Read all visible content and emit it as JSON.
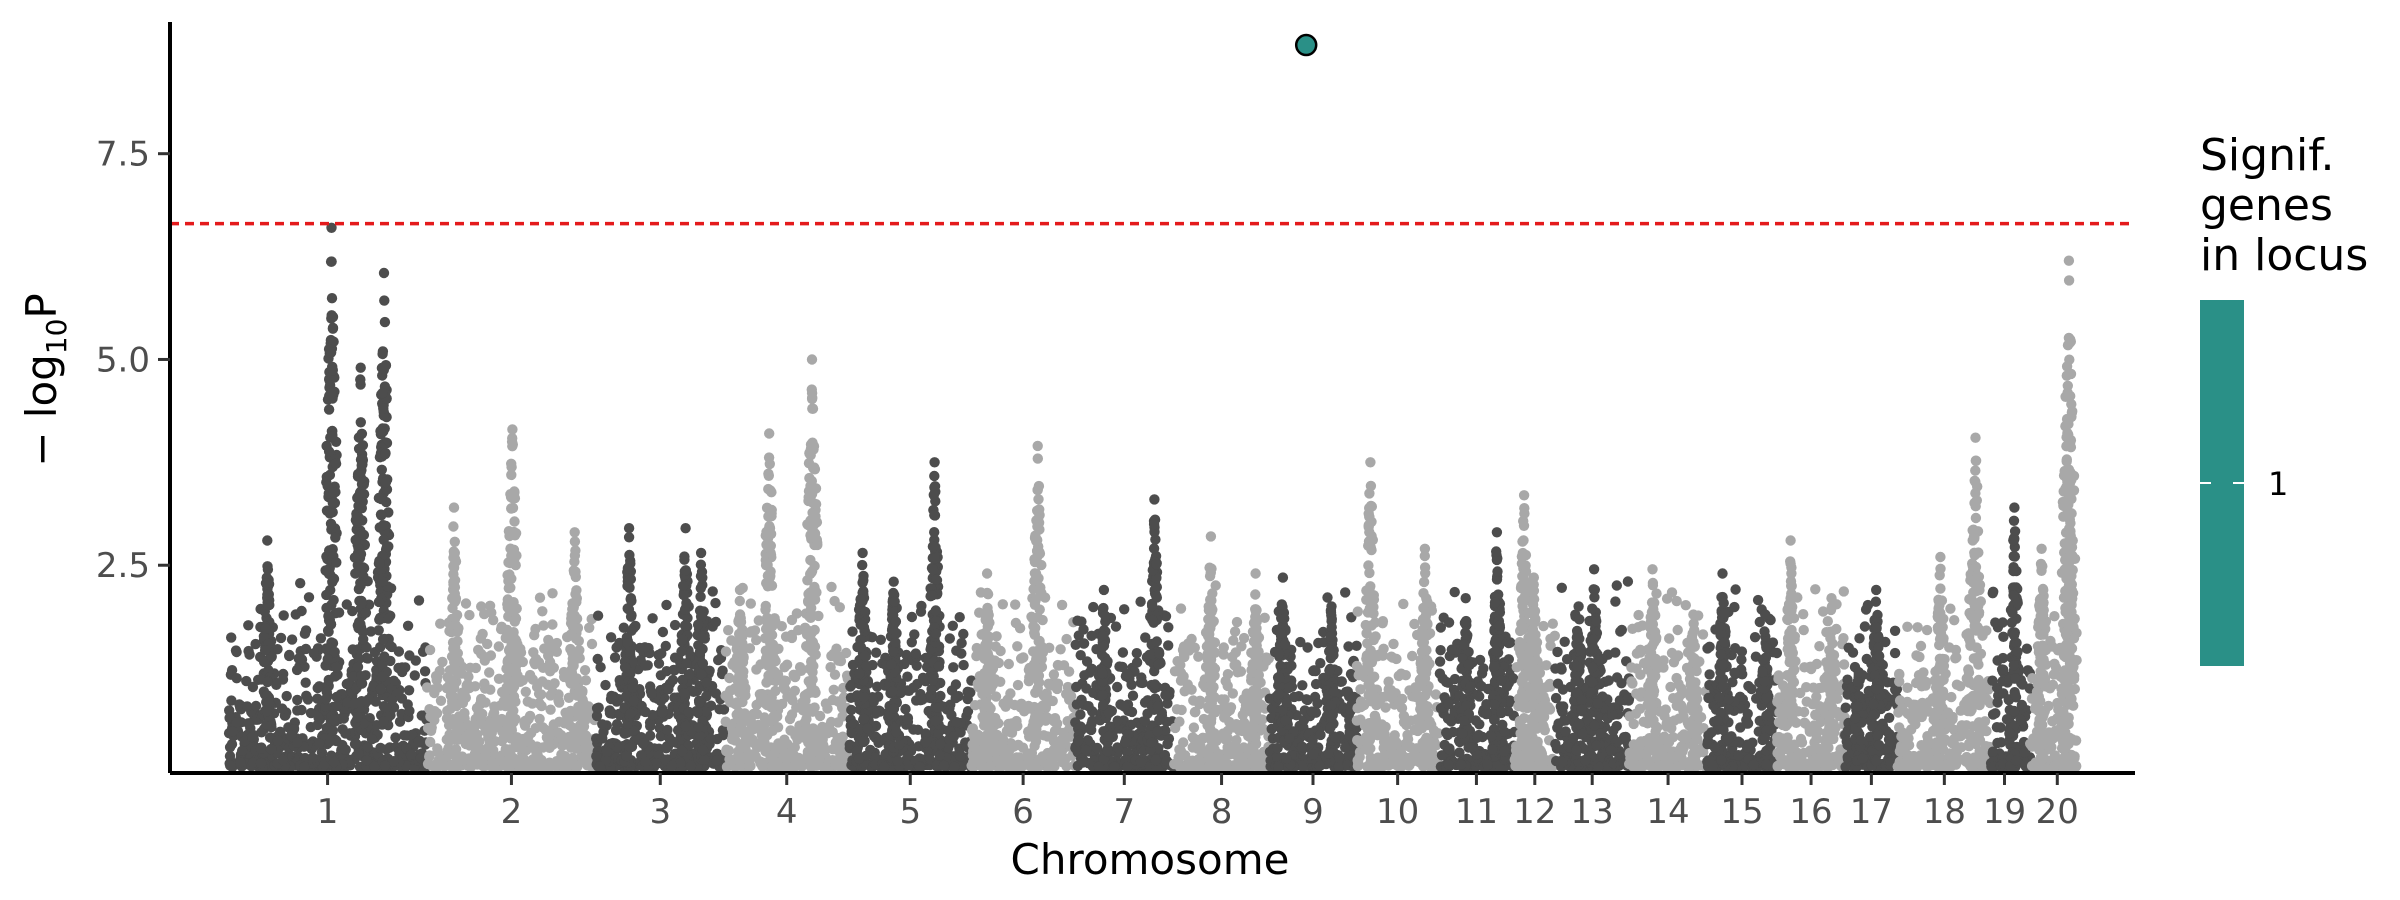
{
  "chart_data": {
    "type": "scatter",
    "title": "",
    "xlabel": "Chromosome",
    "ylabel_main": "− log",
    "ylabel_sub": "10",
    "ylabel_tail": "P",
    "ylim": [
      0,
      9.1
    ],
    "yticks": [
      {
        "value": 2.5,
        "label": "2.5"
      },
      {
        "value": 5.0,
        "label": "5.0"
      },
      {
        "value": 7.5,
        "label": "7.5"
      }
    ],
    "threshold": {
      "value": 6.65,
      "color": "#e41a1c",
      "style": "dashed"
    },
    "colors": {
      "dark": "#4d4d4d",
      "light": "#a8a8a8",
      "highlight": "#2a9087",
      "axis": "#000000"
    },
    "chromosomes": [
      {
        "label": "1",
        "start": 0,
        "end": 10.2,
        "peaks": [
          [
            5.3,
            6.6
          ],
          [
            8.0,
            6.05
          ],
          [
            2.0,
            2.8
          ],
          [
            6.8,
            4.9
          ]
        ]
      },
      {
        "label": "2",
        "start": 10.2,
        "end": 18.9,
        "peaks": [
          [
            14.6,
            4.15
          ],
          [
            11.6,
            3.2
          ],
          [
            17.8,
            2.9
          ]
        ]
      },
      {
        "label": "3",
        "start": 18.9,
        "end": 25.5,
        "peaks": [
          [
            20.6,
            2.95
          ],
          [
            23.5,
            2.95
          ],
          [
            24.3,
            2.65
          ]
        ]
      },
      {
        "label": "4",
        "start": 25.5,
        "end": 31.9,
        "peaks": [
          [
            27.8,
            4.1
          ],
          [
            30.0,
            5.0
          ],
          [
            26.3,
            2.2
          ]
        ]
      },
      {
        "label": "5",
        "start": 31.9,
        "end": 38.2,
        "peaks": [
          [
            36.3,
            3.75
          ],
          [
            32.6,
            2.65
          ],
          [
            34.2,
            2.3
          ]
        ]
      },
      {
        "label": "6",
        "start": 38.2,
        "end": 43.5,
        "peaks": [
          [
            41.6,
            3.95
          ],
          [
            39.0,
            2.4
          ]
        ]
      },
      {
        "label": "7",
        "start": 43.5,
        "end": 48.6,
        "peaks": [
          [
            47.6,
            3.3
          ],
          [
            45.0,
            2.2
          ]
        ]
      },
      {
        "label": "8",
        "start": 48.6,
        "end": 53.5,
        "peaks": [
          [
            50.5,
            2.85
          ],
          [
            52.8,
            2.4
          ]
        ]
      },
      {
        "label": "9",
        "start": 53.5,
        "end": 58.0,
        "peaks": [
          [
            54.2,
            2.35
          ],
          [
            56.7,
            2.0
          ]
        ]
      },
      {
        "label": "10",
        "start": 58.0,
        "end": 62.2,
        "peaks": [
          [
            58.7,
            3.75
          ],
          [
            61.5,
            2.7
          ]
        ]
      },
      {
        "label": "11",
        "start": 62.2,
        "end": 66.1,
        "peaks": [
          [
            65.2,
            2.9
          ],
          [
            63.6,
            2.1
          ]
        ]
      },
      {
        "label": "12",
        "start": 66.1,
        "end": 68.2,
        "peaks": [
          [
            66.6,
            3.35
          ],
          [
            67.1,
            2.35
          ]
        ]
      },
      {
        "label": "13",
        "start": 68.2,
        "end": 72.0,
        "peaks": [
          [
            70.2,
            2.45
          ],
          [
            69.4,
            2.0
          ]
        ]
      },
      {
        "label": "14",
        "start": 72.0,
        "end": 76.0,
        "peaks": [
          [
            73.2,
            2.45
          ],
          [
            75.3,
            1.9
          ]
        ]
      },
      {
        "label": "15",
        "start": 76.0,
        "end": 79.6,
        "peaks": [
          [
            76.8,
            2.4
          ],
          [
            79.0,
            1.9
          ]
        ]
      },
      {
        "label": "16",
        "start": 79.6,
        "end": 83.1,
        "peaks": [
          [
            80.3,
            2.8
          ],
          [
            82.4,
            2.1
          ]
        ]
      },
      {
        "label": "17",
        "start": 83.1,
        "end": 85.8,
        "peaks": [
          [
            84.7,
            2.2
          ],
          [
            83.8,
            1.2
          ]
        ]
      },
      {
        "label": "18",
        "start": 85.8,
        "end": 90.6,
        "peaks": [
          [
            89.8,
            4.05
          ],
          [
            88.0,
            2.6
          ]
        ]
      },
      {
        "label": "19",
        "start": 90.6,
        "end": 92.6,
        "peaks": [
          [
            91.8,
            3.2
          ]
        ]
      },
      {
        "label": "20",
        "start": 92.6,
        "end": 95.0,
        "peaks": [
          [
            93.2,
            2.7
          ],
          [
            94.6,
            6.2
          ],
          [
            94.6,
            3.45
          ]
        ]
      }
    ],
    "highlighted_points": [
      {
        "x": 55.4,
        "y": 8.82,
        "color": "#2a9087"
      }
    ],
    "legend": {
      "title_lines": [
        "Signif.",
        "genes",
        "in locus"
      ],
      "colorbar_color": "#2a9087",
      "tick_label": "1"
    }
  }
}
